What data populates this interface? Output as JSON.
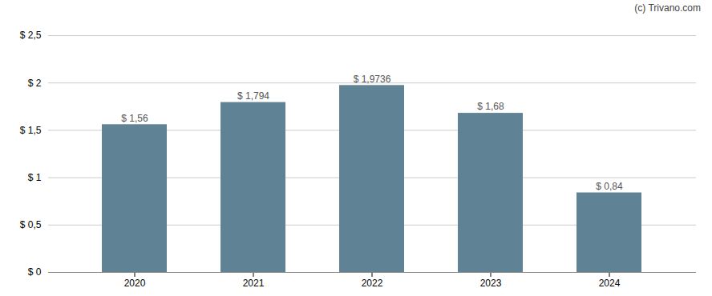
{
  "chart_data": {
    "type": "bar",
    "annotations": [
      "(c) Trivano.com"
    ],
    "categories": [
      "2020",
      "2021",
      "2022",
      "2023",
      "2024"
    ],
    "values": [
      1.56,
      1.794,
      1.9736,
      1.68,
      0.84
    ],
    "value_labels": [
      "$ 1,56",
      "$ 1,794",
      "$ 1,9736",
      "$ 1,68",
      "$ 0,84"
    ],
    "data_labels": true,
    "color": "#5f8295",
    "ylim": [
      0,
      2.5
    ],
    "yticks": [
      {
        "value": 0,
        "label": "$ 0"
      },
      {
        "value": 0.5,
        "label": "$ 0,5"
      },
      {
        "value": 1.0,
        "label": "$ 1"
      },
      {
        "value": 1.5,
        "label": "$ 1,5"
      },
      {
        "value": 2.0,
        "label": "$ 2"
      },
      {
        "value": 2.5,
        "label": "$ 2,5"
      }
    ],
    "grid": true
  }
}
